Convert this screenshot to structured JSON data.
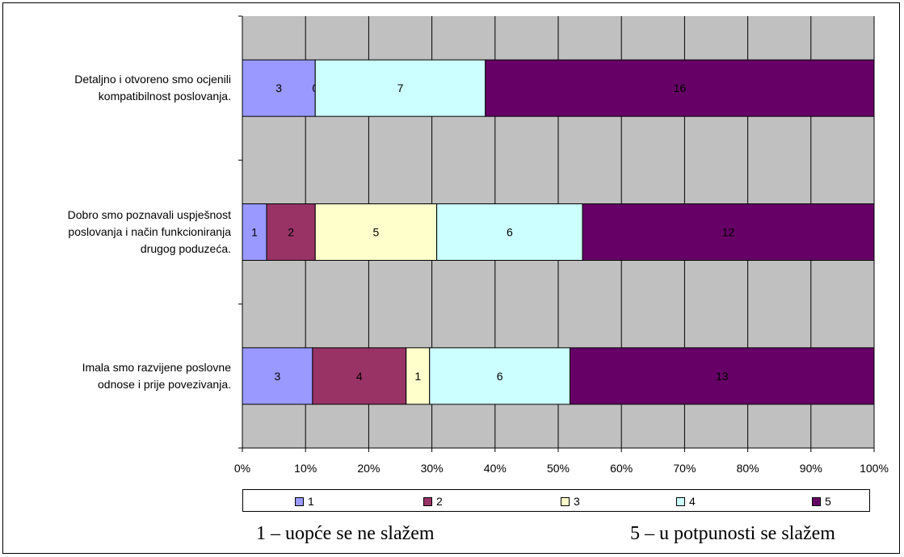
{
  "chart_data": {
    "type": "bar",
    "orientation": "horizontal",
    "stacked": "percent",
    "categories": [
      [
        "Detaljno i otvoreno smo ocjenili",
        "kompatibilnost poslovanja."
      ],
      [
        "Dobro smo poznavali uspješnost",
        "poslovanja i način funkcioniranja",
        "drugog poduzeća."
      ],
      [
        "Imala smo razvijene poslovne",
        "odnose i prije povezivanja."
      ]
    ],
    "series": [
      {
        "name": "1",
        "color": "#9999ff",
        "values": [
          3,
          1,
          3
        ]
      },
      {
        "name": "2",
        "color": "#993366",
        "values": [
          0,
          2,
          4
        ]
      },
      {
        "name": "3",
        "color": "#ffffcc",
        "values": [
          0,
          5,
          1
        ]
      },
      {
        "name": "4",
        "color": "#ccffff",
        "values": [
          7,
          6,
          6
        ]
      },
      {
        "name": "5",
        "color": "#660066",
        "values": [
          16,
          12,
          13
        ]
      }
    ],
    "visible_labels": [
      [
        "3",
        "0",
        null,
        "7",
        "16"
      ],
      [
        "1",
        "2",
        "5",
        "6",
        "12"
      ],
      [
        "3",
        "4",
        "1",
        "6",
        "13"
      ]
    ],
    "x_ticks": [
      "0%",
      "10%",
      "20%",
      "30%",
      "40%",
      "50%",
      "60%",
      "70%",
      "80%",
      "90%",
      "100%"
    ],
    "xlim": [
      0,
      100
    ],
    "grid": true,
    "plot_background": "#c0c0c0",
    "legend_position": "bottom"
  },
  "notes": {
    "left": "1 – uopće se ne slažem",
    "right": "5 – u potpunosti se slažem"
  }
}
